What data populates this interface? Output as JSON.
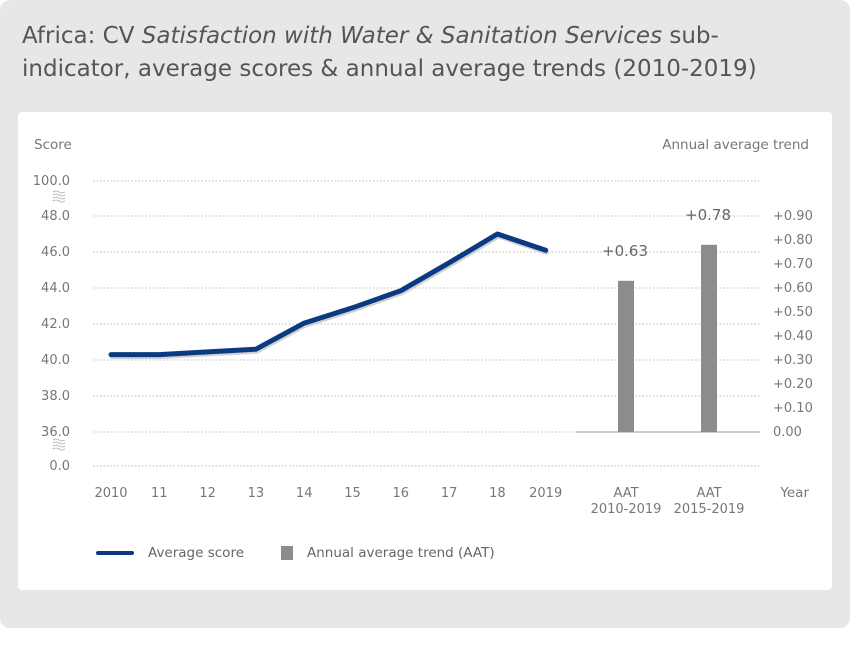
{
  "title": {
    "prefix": "Africa: CV ",
    "italic": "Satisfaction with Water & Sanitation Services",
    "suffix": " sub-indicator, average scores & annual average trends (2010-2019)"
  },
  "colors": {
    "line": "#0b3a82",
    "bar": "#8c8c8c",
    "grid": "#bdbdbd",
    "background": "#e7e7e8"
  },
  "chart_data": [
    {
      "type": "line",
      "ylabel": "Score",
      "y_ticks": [
        "100.0",
        "48.0",
        "46.0",
        "44.0",
        "42.0",
        "40.0",
        "38.0",
        "36.0",
        "0.0"
      ],
      "y_axis_breaks": true,
      "categories": [
        "2010",
        "11",
        "12",
        "13",
        "14",
        "15",
        "16",
        "17",
        "18",
        "2019"
      ],
      "series": [
        {
          "name": "Average score",
          "values": [
            40.3,
            40.3,
            40.45,
            40.6,
            42.05,
            42.9,
            43.85,
            45.4,
            47.0,
            46.1
          ]
        }
      ],
      "grid": true
    },
    {
      "type": "bar",
      "ylabel": "Annual average trend",
      "xlabel": "Year",
      "y_ticks": [
        "+0.90",
        "+0.80",
        "+0.70",
        "+0.60",
        "+0.50",
        "+0.40",
        "+0.30",
        "+0.20",
        "+0.10",
        "0.00"
      ],
      "ylim": [
        0,
        0.9
      ],
      "categories": [
        [
          "AAT",
          "2010-2019"
        ],
        [
          "AAT",
          "2015-2019"
        ]
      ],
      "series": [
        {
          "name": "Annual average trend (AAT)",
          "values": [
            0.63,
            0.78
          ]
        }
      ],
      "data_labels": [
        "+0.63",
        "+0.78"
      ]
    }
  ],
  "legend": [
    "Average score",
    "Annual average trend (AAT)"
  ]
}
